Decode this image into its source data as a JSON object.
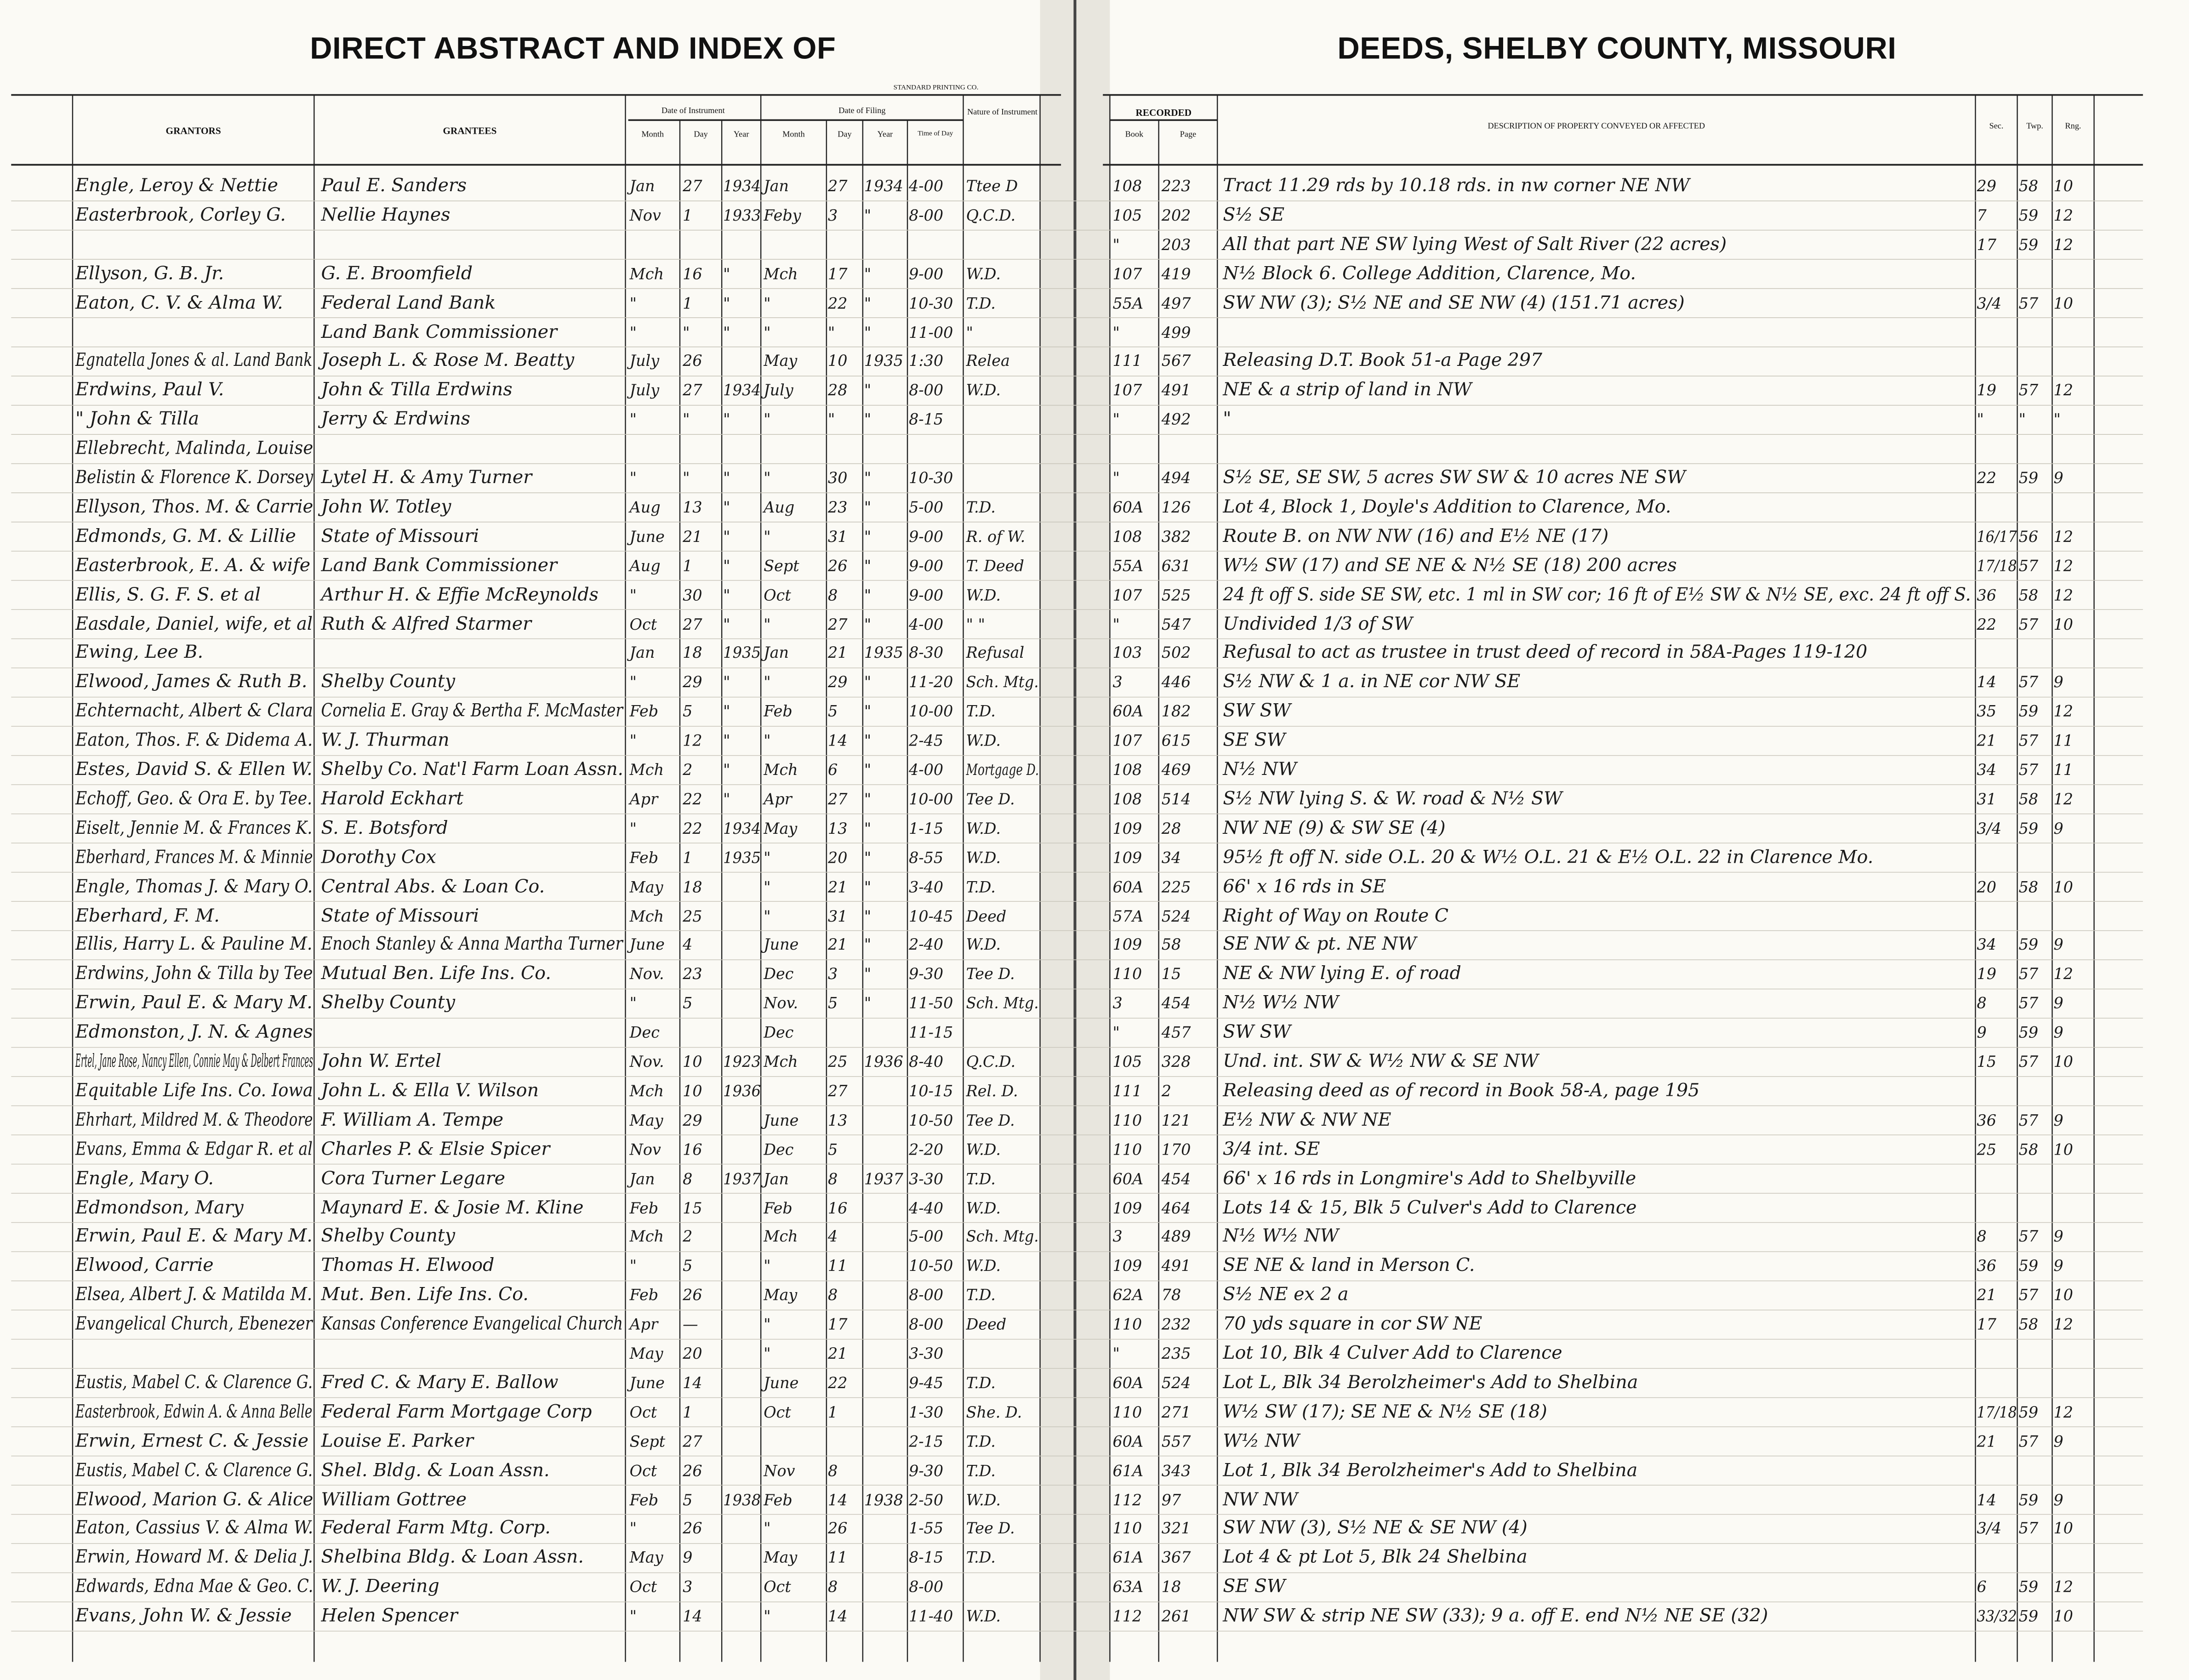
{
  "header": {
    "title_left": "DIRECT ABSTRACT AND INDEX OF",
    "title_right": "DEEDS, SHELBY COUNTY, MISSOURI",
    "printer": "STANDARD PRINTING CO."
  },
  "columns": {
    "grantors": "GRANTORS",
    "grantees": "GRANTEES",
    "instrument": {
      "label": "Date of Instrument",
      "month": "Month",
      "day": "Day",
      "year": "Year"
    },
    "filing": {
      "label": "Date of Filing",
      "month": "Month",
      "day": "Day",
      "year": "Year",
      "time": "Time of Day"
    },
    "nature": "Nature of Instrument",
    "recorded": {
      "label": "RECORDED",
      "book": "Book",
      "page": "Page"
    },
    "description": "DESCRIPTION OF PROPERTY CONVEYED OR AFFECTED",
    "sec": "Sec.",
    "twp": "Twp.",
    "rng": "Rng."
  },
  "rows": [
    [
      "Engle, Leroy & Nettie",
      "Paul E. Sanders",
      "Jan",
      "27",
      "1934",
      "Jan",
      "27",
      "1934",
      "4-00",
      "Ttee D",
      "108",
      "223",
      "Tract 11.29 rds by 10.18 rds. in nw corner NE NW",
      "29",
      "58",
      "10"
    ],
    [
      "Easterbrook, Corley G.",
      "Nellie Haynes",
      "Nov",
      "1",
      "1933",
      "Feby",
      "3",
      "\"",
      "8-00",
      "Q.C.D.",
      "105",
      "202",
      "S½ SE",
      "7",
      "59",
      "12"
    ],
    [
      null,
      null,
      null,
      null,
      null,
      null,
      null,
      null,
      null,
      null,
      "\"",
      "203",
      "All that part NE SW lying West of Salt River (22 acres)",
      "17",
      "59",
      "12"
    ],
    [
      "Ellyson, G. B. Jr.",
      "G. E. Broomfield",
      "Mch",
      "16",
      "\"",
      "Mch",
      "17",
      "\"",
      "9-00",
      "W.D.",
      "107",
      "419",
      "N½ Block 6. College Addition, Clarence, Mo.",
      null,
      null,
      null
    ],
    [
      "Eaton, C. V. & Alma W.",
      "Federal Land Bank",
      "\"",
      "1",
      "\"",
      "\"",
      "22",
      "\"",
      "10-30",
      "T.D.",
      "55A",
      "497",
      "SW NW (3); S½ NE and SE NW (4)   (151.71 acres)",
      "3/4",
      "57",
      "10"
    ],
    [
      null,
      "Land Bank Commissioner",
      "\"",
      "\"",
      "\"",
      "\"",
      "\"",
      "\"",
      "11-00",
      "\"",
      "\"",
      "499",
      null,
      null,
      null,
      null
    ],
    [
      "Egnatella Jones & al. Land Bank",
      "Joseph L. & Rose M. Beatty",
      "July",
      "26",
      null,
      "May",
      "10",
      "1935",
      "1:30",
      "Relea",
      "111",
      "567",
      "Releasing D.T. Book 51-a Page 297",
      null,
      null,
      null
    ],
    [
      "Erdwins, Paul V.",
      "John & Tilla Erdwins",
      "July",
      "27",
      "1934",
      "July",
      "28",
      "\"",
      "8-00",
      "W.D.",
      "107",
      "491",
      "NE & a strip of land in NW",
      "19",
      "57",
      "12"
    ],
    [
      "\"  John & Tilla",
      "Jerry & Erdwins",
      "\"",
      "\"",
      "\"",
      "\"",
      "\"",
      "\"",
      "8-15",
      null,
      "\"",
      "492",
      "\"",
      "\"",
      "\"",
      "\""
    ],
    [
      "Ellebrecht, Malinda, Louise",
      null,
      null,
      null,
      null,
      null,
      null,
      null,
      null,
      null,
      null,
      null,
      null,
      null,
      null,
      null
    ],
    [
      "Belistin & Florence K. Dorsey",
      "Lytel H. & Amy Turner",
      "\"",
      "\"",
      "\"",
      "\"",
      "30",
      "\"",
      "10-30",
      null,
      "\"",
      "494",
      "S½ SE, SE SW, 5 acres SW SW & 10 acres NE SW",
      "22",
      "59",
      "9"
    ],
    [
      "Ellyson, Thos. M. & Carrie",
      "John W. Totley",
      "Aug",
      "13",
      "\"",
      "Aug",
      "23",
      "\"",
      "5-00",
      "T.D.",
      "60A",
      "126",
      "Lot 4, Block 1, Doyle's Addition to Clarence, Mo.",
      null,
      null,
      null
    ],
    [
      "Edmonds, G. M. & Lillie",
      "State of Missouri",
      "June",
      "21",
      "\"",
      "\"",
      "31",
      "\"",
      "9-00",
      "R. of W.",
      "108",
      "382",
      "Route B. on NW NW (16) and E½ NE (17)",
      "16/17",
      "56",
      "12"
    ],
    [
      "Easterbrook, E. A. & wife",
      "Land Bank Commissioner",
      "Aug",
      "1",
      "\"",
      "Sept",
      "26",
      "\"",
      "9-00",
      "T. Deed",
      "55A",
      "631",
      "W½ SW (17) and SE NE & N½ SE (18)   200 acres",
      "17/18",
      "57",
      "12"
    ],
    [
      "Ellis, S. G. F. S. et al",
      "Arthur H. & Effie McReynolds",
      "\"",
      "30",
      "\"",
      "Oct",
      "8",
      "\"",
      "9-00",
      "W.D.",
      "107",
      "525",
      "24 ft off S. side SE SW, etc. 1 ml in SW cor; 16 ft of E½ SW & N½ SE, exc. 24 ft off S.",
      "36",
      "58",
      "12"
    ],
    [
      "Easdale, Daniel, wife, et al",
      "Ruth & Alfred Starmer",
      "Oct",
      "27",
      "\"",
      "\"",
      "27",
      "\"",
      "4-00",
      "\"  \"",
      "\"",
      "547",
      "Undivided 1/3 of SW",
      "22",
      "57",
      "10"
    ],
    [
      "Ewing, Lee B.",
      null,
      "Jan",
      "18",
      "1935",
      "Jan",
      "21",
      "1935",
      "8-30",
      "Refusal",
      "103",
      "502",
      "Refusal to act as trustee in trust deed of record in 58A-Pages 119-120",
      null,
      null,
      null
    ],
    [
      "Elwood, James & Ruth B.",
      "Shelby County",
      "\"",
      "29",
      "\"",
      "\"",
      "29",
      "\"",
      "11-20",
      "Sch. Mtg.",
      "3",
      "446",
      "S½ NW & 1 a. in NE cor NW SE",
      "14",
      "57",
      "9"
    ],
    [
      "Echternacht, Albert & Clara",
      "Cornelia E. Gray & Bertha F. McMaster",
      "Feb",
      "5",
      "\"",
      "Feb",
      "5",
      "\"",
      "10-00",
      "T.D.",
      "60A",
      "182",
      "SW SW",
      "35",
      "59",
      "12"
    ],
    [
      "Eaton, Thos. F. & Didema A.",
      "W. J. Thurman",
      "\"",
      "12",
      "\"",
      "\"",
      "14",
      "\"",
      "2-45",
      "W.D.",
      "107",
      "615",
      "SE SW",
      "21",
      "57",
      "11"
    ],
    [
      "Estes, David S. & Ellen W.",
      "Shelby Co. Nat'l Farm Loan Assn.",
      "Mch",
      "2",
      "\"",
      "Mch",
      "6",
      "\"",
      "4-00",
      "Mortgage D.",
      "108",
      "469",
      "N½ NW",
      "34",
      "57",
      "11"
    ],
    [
      "Echoff, Geo. & Ora E. by Tee.",
      "Harold Eckhart",
      "Apr",
      "22",
      "\"",
      "Apr",
      "27",
      "\"",
      "10-00",
      "Tee D.",
      "108",
      "514",
      "S½ NW lying S. & W. road & N½ SW",
      "31",
      "58",
      "12"
    ],
    [
      "Eiselt, Jennie M. & Frances K.",
      "S. E. Botsford",
      "\"",
      "22",
      "1934",
      "May",
      "13",
      "\"",
      "1-15",
      "W.D.",
      "109",
      "28",
      "NW NE (9) & SW SE (4)",
      "3/4",
      "59",
      "9"
    ],
    [
      "Eberhard, Frances M. & Minnie",
      "Dorothy Cox",
      "Feb",
      "1",
      "1935",
      "\"",
      "20",
      "\"",
      "8-55",
      "W.D.",
      "109",
      "34",
      "95½ ft off N. side O.L. 20 & W½ O.L. 21 & E½ O.L. 22 in Clarence Mo.",
      null,
      null,
      null
    ],
    [
      "Engle, Thomas J. & Mary O.",
      "Central Abs. & Loan Co.",
      "May",
      "18",
      null,
      "\"",
      "21",
      "\"",
      "3-40",
      "T.D.",
      "60A",
      "225",
      "66' x 16 rds in SE",
      "20",
      "58",
      "10"
    ],
    [
      "Eberhard, F. M.",
      "State of Missouri",
      "Mch",
      "25",
      null,
      "\"",
      "31",
      "\"",
      "10-45",
      "Deed",
      "57A",
      "524",
      "Right of Way on Route C",
      null,
      null,
      null
    ],
    [
      "Ellis, Harry L. & Pauline M.",
      "Enoch Stanley & Anna Martha Turner",
      "June",
      "4",
      null,
      "June",
      "21",
      "\"",
      "2-40",
      "W.D.",
      "109",
      "58",
      "SE NW & pt. NE NW",
      "34",
      "59",
      "9"
    ],
    [
      "Erdwins, John & Tilla by Tee",
      "Mutual Ben. Life Ins. Co.",
      "Nov.",
      "23",
      null,
      "Dec",
      "3",
      "\"",
      "9-30",
      "Tee D.",
      "110",
      "15",
      "NE & NW lying E. of road",
      "19",
      "57",
      "12"
    ],
    [
      "Erwin, Paul E. & Mary M.",
      "Shelby County",
      "\"",
      "5",
      null,
      "Nov.",
      "5",
      "\"",
      "11-50",
      "Sch. Mtg.",
      "3",
      "454",
      "N½ W½ NW",
      "8",
      "57",
      "9"
    ],
    [
      "Edmonston, J. N. & Agnes",
      null,
      "Dec",
      null,
      null,
      "Dec",
      null,
      null,
      "11-15",
      null,
      "\"",
      "457",
      "SW SW",
      "9",
      "59",
      "9"
    ],
    [
      "Ertel, Jane Rose, Nancy Ellen, Connie May & Delbert Frances",
      "John W. Ertel",
      "Nov.",
      "10",
      "1923",
      "Mch",
      "25",
      "1936",
      "8-40",
      "Q.C.D.",
      "105",
      "328",
      "Und. int. SW & W½ NW & SE NW",
      "15",
      "57",
      "10"
    ],
    [
      "Equitable Life Ins. Co. Iowa",
      "John L. & Ella V. Wilson",
      "Mch",
      "10",
      "1936",
      null,
      "27",
      null,
      "10-15",
      "Rel. D.",
      "111",
      "2",
      "Releasing deed as of record in Book 58-A, page 195",
      null,
      null,
      null
    ],
    [
      "Ehrhart, Mildred M. & Theodore",
      "F. William A. Tempe",
      "May",
      "29",
      null,
      "June",
      "13",
      null,
      "10-50",
      "Tee D.",
      "110",
      "121",
      "E½ NW & NW NE",
      "36",
      "57",
      "9"
    ],
    [
      "Evans, Emma & Edgar R. et al",
      "Charles P. & Elsie Spicer",
      "Nov",
      "16",
      null,
      "Dec",
      "5",
      null,
      "2-20",
      "W.D.",
      "110",
      "170",
      "3/4 int. SE",
      "25",
      "58",
      "10"
    ],
    [
      "Engle, Mary O.",
      "Cora Turner Legare",
      "Jan",
      "8",
      "1937",
      "Jan",
      "8",
      "1937",
      "3-30",
      "T.D.",
      "60A",
      "454",
      "66' x 16 rds in Longmire's Add to Shelbyville",
      null,
      null,
      null
    ],
    [
      "Edmondson, Mary",
      "Maynard E. & Josie M. Kline",
      "Feb",
      "15",
      null,
      "Feb",
      "16",
      null,
      "4-40",
      "W.D.",
      "109",
      "464",
      "Lots 14 & 15, Blk 5 Culver's Add to Clarence",
      null,
      null,
      null
    ],
    [
      "Erwin, Paul E. & Mary M.",
      "Shelby County",
      "Mch",
      "2",
      null,
      "Mch",
      "4",
      null,
      "5-00",
      "Sch. Mtg.",
      "3",
      "489",
      "N½ W½ NW",
      "8",
      "57",
      "9"
    ],
    [
      "Elwood, Carrie",
      "Thomas H. Elwood",
      "\"",
      "5",
      null,
      "\"",
      "11",
      null,
      "10-50",
      "W.D.",
      "109",
      "491",
      "SE NE & land in Merson C.",
      "36",
      "59",
      "9"
    ],
    [
      "Elsea, Albert J. & Matilda M.",
      "Mut. Ben. Life Ins. Co.",
      "Feb",
      "26",
      null,
      "May",
      "8",
      null,
      "8-00",
      "T.D.",
      "62A",
      "78",
      "S½ NE ex 2 a",
      "21",
      "57",
      "10"
    ],
    [
      "Evangelical Church, Ebenezer",
      "Kansas Conference Evangelical Church",
      "Apr",
      "—",
      null,
      "\"",
      "17",
      null,
      "8-00",
      "Deed",
      "110",
      "232",
      "70 yds square in cor SW NE",
      "17",
      "58",
      "12"
    ],
    [
      null,
      null,
      "May",
      "20",
      null,
      "\"",
      "21",
      null,
      "3-30",
      null,
      "\"",
      "235",
      "Lot 10, Blk 4 Culver Add to Clarence",
      null,
      null,
      null
    ],
    [
      "Eustis, Mabel C. & Clarence G.",
      "Fred C. & Mary E. Ballow",
      "June",
      "14",
      null,
      "June",
      "22",
      null,
      "9-45",
      "T.D.",
      "60A",
      "524",
      "Lot L, Blk 34 Berolzheimer's Add to Shelbina",
      null,
      null,
      null
    ],
    [
      "Easterbrook, Edwin A. & Anna Belle",
      "Federal Farm Mortgage Corp",
      "Oct",
      "1",
      null,
      "Oct",
      "1",
      null,
      "1-30",
      "She. D.",
      "110",
      "271",
      "W½ SW (17); SE NE & N½ SE (18)",
      "17/18",
      "59",
      "12"
    ],
    [
      "Erwin, Ernest C. & Jessie",
      "Louise E. Parker",
      "Sept",
      "27",
      null,
      null,
      null,
      null,
      "2-15",
      "T.D.",
      "60A",
      "557",
      "W½ NW",
      "21",
      "57",
      "9"
    ],
    [
      "Eustis, Mabel C. & Clarence G.",
      "Shel. Bldg. & Loan Assn.",
      "Oct",
      "26",
      null,
      "Nov",
      "8",
      null,
      "9-30",
      "T.D.",
      "61A",
      "343",
      "Lot 1, Blk 34 Berolzheimer's Add to Shelbina",
      null,
      null,
      null
    ],
    [
      "Elwood, Marion G. & Alice",
      "William Gottree",
      "Feb",
      "5",
      "1938",
      "Feb",
      "14",
      "1938",
      "2-50",
      "W.D.",
      "112",
      "97",
      "NW NW",
      "14",
      "59",
      "9"
    ],
    [
      "Eaton, Cassius V. & Alma W.",
      "Federal Farm Mtg. Corp.",
      "\"",
      "26",
      null,
      "\"",
      "26",
      null,
      "1-55",
      "Tee D.",
      "110",
      "321",
      "SW NW (3), S½ NE & SE NW (4)",
      "3/4",
      "57",
      "10"
    ],
    [
      "Erwin, Howard M. & Delia J.",
      "Shelbina Bldg. & Loan Assn.",
      "May",
      "9",
      null,
      "May",
      "11",
      null,
      "8-15",
      "T.D.",
      "61A",
      "367",
      "Lot 4 & pt Lot 5, Blk 24 Shelbina",
      null,
      null,
      null
    ],
    [
      "Edwards, Edna Mae & Geo. C.",
      "W. J. Deering",
      "Oct",
      "3",
      null,
      "Oct",
      "8",
      null,
      "8-00",
      null,
      "63A",
      "18",
      "SE SW",
      "6",
      "59",
      "12"
    ],
    [
      "Evans, John W. & Jessie",
      "Helen Spencer",
      "\"",
      "14",
      null,
      "\"",
      "14",
      null,
      "11-40",
      "W.D.",
      "112",
      "261",
      "NW SW & strip NE SW (33); 9 a. off E. end N½ NE SE (32)",
      "33/32",
      "59",
      "10"
    ]
  ]
}
